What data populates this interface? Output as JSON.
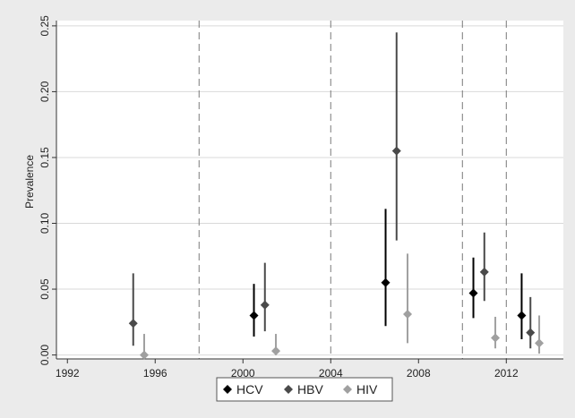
{
  "chart_data": {
    "type": "scatter",
    "subtype": "point-estimate-with-confidence-interval",
    "title": "",
    "xlabel": "",
    "ylabel": "Prevalence",
    "xlim": [
      1991.5,
      2014.6
    ],
    "ylim": [
      -0.003,
      0.254
    ],
    "x_ticks": [
      1992,
      1996,
      2000,
      2004,
      2008,
      2012
    ],
    "x_tick_labels": [
      "1992",
      "1996",
      "2000",
      "2004",
      "2008",
      "2012"
    ],
    "y_ticks": [
      0.0,
      0.05,
      0.1,
      0.15,
      0.2,
      0.25
    ],
    "y_tick_labels": [
      "0.00",
      "0.05",
      "0.10",
      "0.15",
      "0.20",
      "0.25"
    ],
    "grid": "horizontal",
    "vertical_reference_lines": [
      1998,
      2004,
      2010,
      2012
    ],
    "legend_position": "bottom",
    "series": [
      {
        "name": "HCV",
        "color": "#000000",
        "points": [
          {
            "x": 2000.5,
            "y": 0.03,
            "lower": 0.014,
            "upper": 0.054
          },
          {
            "x": 2006.5,
            "y": 0.055,
            "lower": 0.022,
            "upper": 0.111
          },
          {
            "x": 2010.5,
            "y": 0.047,
            "lower": 0.028,
            "upper": 0.074
          },
          {
            "x": 2012.7,
            "y": 0.03,
            "lower": 0.012,
            "upper": 0.062
          }
        ]
      },
      {
        "name": "HBV",
        "color": "#4a4a4a",
        "points": [
          {
            "x": 1995.0,
            "y": 0.024,
            "lower": 0.007,
            "upper": 0.062
          },
          {
            "x": 2001.0,
            "y": 0.038,
            "lower": 0.018,
            "upper": 0.07
          },
          {
            "x": 2007.0,
            "y": 0.155,
            "lower": 0.087,
            "upper": 0.245
          },
          {
            "x": 2011.0,
            "y": 0.063,
            "lower": 0.041,
            "upper": 0.093
          },
          {
            "x": 2013.1,
            "y": 0.017,
            "lower": 0.005,
            "upper": 0.044
          }
        ]
      },
      {
        "name": "HIV",
        "color": "#a0a0a0",
        "points": [
          {
            "x": 1995.5,
            "y": 0.0,
            "lower": 0.0,
            "upper": 0.016
          },
          {
            "x": 2001.5,
            "y": 0.003,
            "lower": 0.0,
            "upper": 0.016
          },
          {
            "x": 2007.5,
            "y": 0.031,
            "lower": 0.009,
            "upper": 0.077
          },
          {
            "x": 2011.5,
            "y": 0.013,
            "lower": 0.005,
            "upper": 0.029
          },
          {
            "x": 2013.5,
            "y": 0.009,
            "lower": 0.001,
            "upper": 0.03
          }
        ]
      }
    ]
  }
}
